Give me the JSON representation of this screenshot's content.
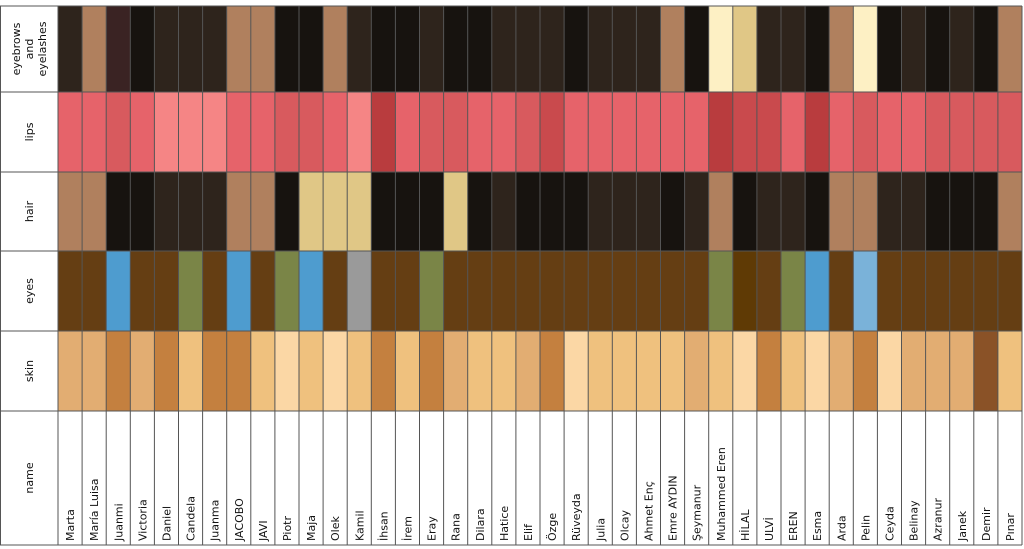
{
  "chart_data": {
    "type": "heatmap",
    "rows": [
      {
        "key": "eyebrows",
        "label": [
          "eyebrows",
          "and",
          "eyelashes"
        ]
      },
      {
        "key": "lips",
        "label": [
          "lips"
        ]
      },
      {
        "key": "hair",
        "label": [
          "hair"
        ]
      },
      {
        "key": "eyes",
        "label": [
          "eyes"
        ]
      },
      {
        "key": "skin",
        "label": [
          "skin"
        ]
      },
      {
        "key": "name",
        "label": [
          "name"
        ]
      }
    ],
    "columns": [
      {
        "name": "Marta",
        "eyebrows": "#2e241c",
        "lips": "#e6636a",
        "hair": "#b0805e",
        "eyes": "#653e13",
        "skin": "#e2ad72"
      },
      {
        "name": "María Luisa",
        "eyebrows": "#b0805e",
        "lips": "#e6636a",
        "hair": "#b0805e",
        "eyes": "#653e13",
        "skin": "#e2ad72"
      },
      {
        "name": "Juanmi",
        "eyebrows": "#3a2323",
        "lips": "#d85a5e",
        "hair": "#17130f",
        "eyes": "#4e9ccf",
        "skin": "#c4803f"
      },
      {
        "name": "Victoria",
        "eyebrows": "#17130f",
        "lips": "#e6636a",
        "hair": "#17130f",
        "eyes": "#653e13",
        "skin": "#e2ad72"
      },
      {
        "name": "Daniel",
        "eyebrows": "#2e241c",
        "lips": "#f58585",
        "hair": "#2e241c",
        "eyes": "#653e13",
        "skin": "#c4803f"
      },
      {
        "name": "Candela",
        "eyebrows": "#2e241c",
        "lips": "#f58585",
        "hair": "#2e241c",
        "eyes": "#7a8547",
        "skin": "#efc17e"
      },
      {
        "name": "Juanma",
        "eyebrows": "#2e241c",
        "lips": "#f58585",
        "hair": "#2e241c",
        "eyes": "#653e13",
        "skin": "#c4803f"
      },
      {
        "name": "JACOBO",
        "eyebrows": "#b0805e",
        "lips": "#e6636a",
        "hair": "#b0805e",
        "eyes": "#4e9ccf",
        "skin": "#c4803f"
      },
      {
        "name": "JAVI",
        "eyebrows": "#b0805e",
        "lips": "#e6636a",
        "hair": "#b0805e",
        "eyes": "#653e13",
        "skin": "#efc17e"
      },
      {
        "name": "Piotr",
        "eyebrows": "#17130f",
        "lips": "#d85a5e",
        "hair": "#17130f",
        "eyes": "#7a8547",
        "skin": "#fbd7a5"
      },
      {
        "name": "Maja",
        "eyebrows": "#17130f",
        "lips": "#d85a5e",
        "hair": "#e0c786",
        "eyes": "#4e9ccf",
        "skin": "#efc17e"
      },
      {
        "name": "Olek",
        "eyebrows": "#b0805e",
        "lips": "#e6636a",
        "hair": "#e0c786",
        "eyes": "#653e13",
        "skin": "#fbd7a5"
      },
      {
        "name": "Kamil",
        "eyebrows": "#2e241c",
        "lips": "#f58585",
        "hair": "#e0c786",
        "eyes": "#9a9a9a",
        "skin": "#efc17e"
      },
      {
        "name": "İhsan",
        "eyebrows": "#17130f",
        "lips": "#b93c3e",
        "hair": "#17130f",
        "eyes": "#653e13",
        "skin": "#c4803f"
      },
      {
        "name": "İrem",
        "eyebrows": "#17130f",
        "lips": "#e6636a",
        "hair": "#17130f",
        "eyes": "#653e13",
        "skin": "#efc17e"
      },
      {
        "name": "Eray",
        "eyebrows": "#2e241c",
        "lips": "#d85a5e",
        "hair": "#17130f",
        "eyes": "#7a8547",
        "skin": "#c4803f"
      },
      {
        "name": "Rana",
        "eyebrows": "#17130f",
        "lips": "#d85a5e",
        "hair": "#e0c786",
        "eyes": "#653e13",
        "skin": "#e2ad72"
      },
      {
        "name": "Dilara",
        "eyebrows": "#17130f",
        "lips": "#e6636a",
        "hair": "#17130f",
        "eyes": "#653e13",
        "skin": "#efc17e"
      },
      {
        "name": "Hatice",
        "eyebrows": "#2e241c",
        "lips": "#e6636a",
        "hair": "#2e241c",
        "eyes": "#653e13",
        "skin": "#efc17e"
      },
      {
        "name": "Elif",
        "eyebrows": "#2e241c",
        "lips": "#d85a5e",
        "hair": "#17130f",
        "eyes": "#653e13",
        "skin": "#e2ad72"
      },
      {
        "name": "Özge",
        "eyebrows": "#2e241c",
        "lips": "#c94a4d",
        "hair": "#17130f",
        "eyes": "#653e13",
        "skin": "#c4803f"
      },
      {
        "name": "Rüveyda",
        "eyebrows": "#17130f",
        "lips": "#e6636a",
        "hair": "#17130f",
        "eyes": "#653e13",
        "skin": "#fbd7a5"
      },
      {
        "name": "Julia",
        "eyebrows": "#2e241c",
        "lips": "#e6636a",
        "hair": "#2e241c",
        "eyes": "#653e13",
        "skin": "#efc17e"
      },
      {
        "name": "Olcay",
        "eyebrows": "#2e241c",
        "lips": "#e6636a",
        "hair": "#2e241c",
        "eyes": "#653e13",
        "skin": "#efc17e"
      },
      {
        "name": "Ahmet Enç",
        "eyebrows": "#2e241c",
        "lips": "#e6636a",
        "hair": "#2e241c",
        "eyes": "#653e13",
        "skin": "#efc17e"
      },
      {
        "name": "Emre AYDIN",
        "eyebrows": "#b0805e",
        "lips": "#e6636a",
        "hair": "#17130f",
        "eyes": "#653e13",
        "skin": "#efc17e"
      },
      {
        "name": "Şeymanur",
        "eyebrows": "#17130f",
        "lips": "#e6636a",
        "hair": "#2e241c",
        "eyes": "#653e13",
        "skin": "#e2ad72"
      },
      {
        "name": "Muhammed Eren",
        "eyebrows": "#fdf0c4",
        "lips": "#b93c3e",
        "hair": "#b0805e",
        "eyes": "#7a8547",
        "skin": "#efc17e"
      },
      {
        "name": "HİLAL",
        "eyebrows": "#e0c786",
        "lips": "#c94a4d",
        "hair": "#17130f",
        "eyes": "#5f3a05",
        "skin": "#fbd7a5"
      },
      {
        "name": "ULVİ",
        "eyebrows": "#2e241c",
        "lips": "#c94a4d",
        "hair": "#2e241c",
        "eyes": "#653e13",
        "skin": "#c4803f"
      },
      {
        "name": "EREN",
        "eyebrows": "#2e241c",
        "lips": "#e6636a",
        "hair": "#2e241c",
        "eyes": "#7a8547",
        "skin": "#efc17e"
      },
      {
        "name": "Esma",
        "eyebrows": "#17130f",
        "lips": "#b93c3e",
        "hair": "#17130f",
        "eyes": "#4e9ccf",
        "skin": "#fbd7a5"
      },
      {
        "name": "Arda",
        "eyebrows": "#b0805e",
        "lips": "#e6636a",
        "hair": "#b0805e",
        "eyes": "#653e13",
        "skin": "#e2ad72"
      },
      {
        "name": "Pelin",
        "eyebrows": "#fdf0c4",
        "lips": "#d85a5e",
        "hair": "#b0805e",
        "eyes": "#7ab2d9",
        "skin": "#c4803f"
      },
      {
        "name": "Ceyda",
        "eyebrows": "#17130f",
        "lips": "#e6636a",
        "hair": "#2e241c",
        "eyes": "#653e13",
        "skin": "#fbd7a5"
      },
      {
        "name": "Belinay",
        "eyebrows": "#2e241c",
        "lips": "#e6636a",
        "hair": "#2e241c",
        "eyes": "#653e13",
        "skin": "#e2ad72"
      },
      {
        "name": "Azranur",
        "eyebrows": "#17130f",
        "lips": "#d85a5e",
        "hair": "#17130f",
        "eyes": "#653e13",
        "skin": "#e2ad72"
      },
      {
        "name": "Janek",
        "eyebrows": "#2e241c",
        "lips": "#d85a5e",
        "hair": "#17130f",
        "eyes": "#653e13",
        "skin": "#e2ad72"
      },
      {
        "name": "Demir",
        "eyebrows": "#17130f",
        "lips": "#d85a5e",
        "hair": "#17130f",
        "eyes": "#653e13",
        "skin": "#8a5227"
      },
      {
        "name": "Pınar",
        "eyebrows": "#b0805e",
        "lips": "#d85a5e",
        "hair": "#b0805e",
        "eyes": "#653e13",
        "skin": "#efc17e"
      }
    ]
  }
}
